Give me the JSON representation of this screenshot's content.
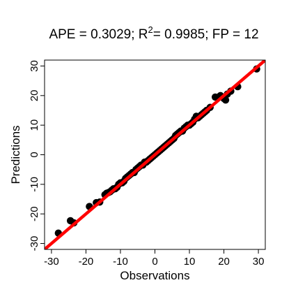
{
  "chart_data": {
    "type": "scatter",
    "title": {
      "prefix": "APE = 0.3029; R",
      "superscript": "2",
      "suffix": "= 0.9985; FP = 12"
    },
    "xlabel": "Observations",
    "ylabel": "Predictions",
    "xlim": [
      -32,
      32
    ],
    "ylim": [
      -32,
      32
    ],
    "xticks": [
      -30,
      -20,
      -10,
      0,
      10,
      20,
      30
    ],
    "yticks": [
      -30,
      -20,
      -10,
      0,
      10,
      20,
      30
    ],
    "grid": false,
    "legend": "none",
    "reference_line": {
      "slope": 1,
      "intercept": 0,
      "color": "#ff0000"
    },
    "point_color": "#000000",
    "points": [
      {
        "x": -28,
        "y": -26.5
      },
      {
        "x": -24.5,
        "y": -22.3
      },
      {
        "x": -23.5,
        "y": -23
      },
      {
        "x": -19,
        "y": -17.5
      },
      {
        "x": -17,
        "y": -16.2
      },
      {
        "x": -16,
        "y": -16
      },
      {
        "x": -14.5,
        "y": -13.5
      },
      {
        "x": -14,
        "y": -13
      },
      {
        "x": -13.5,
        "y": -12.8
      },
      {
        "x": -13,
        "y": -12.5
      },
      {
        "x": -12.5,
        "y": -12
      },
      {
        "x": -12,
        "y": -11.5
      },
      {
        "x": -11.5,
        "y": -11.5
      },
      {
        "x": -11,
        "y": -11
      },
      {
        "x": -10.5,
        "y": -10
      },
      {
        "x": -10,
        "y": -9.5
      },
      {
        "x": -9.5,
        "y": -9.5
      },
      {
        "x": -9,
        "y": -9
      },
      {
        "x": -8.5,
        "y": -8
      },
      {
        "x": -8,
        "y": -7.5
      },
      {
        "x": -7.5,
        "y": -7
      },
      {
        "x": -7,
        "y": -6.5
      },
      {
        "x": -6.5,
        "y": -6
      },
      {
        "x": -6,
        "y": -6
      },
      {
        "x": -5.5,
        "y": -5
      },
      {
        "x": -5,
        "y": -4.5
      },
      {
        "x": -4.5,
        "y": -4
      },
      {
        "x": -4,
        "y": -3.5
      },
      {
        "x": -3.5,
        "y": -3.5
      },
      {
        "x": -3,
        "y": -2.5
      },
      {
        "x": -2.5,
        "y": -2.5
      },
      {
        "x": -2,
        "y": -2
      },
      {
        "x": -1.5,
        "y": -1.5
      },
      {
        "x": -1,
        "y": -1
      },
      {
        "x": -0.5,
        "y": -0.5
      },
      {
        "x": 0,
        "y": 0
      },
      {
        "x": 0.5,
        "y": 0.5
      },
      {
        "x": 1,
        "y": 1
      },
      {
        "x": 1.5,
        "y": 1.5
      },
      {
        "x": 2,
        "y": 2
      },
      {
        "x": 2.5,
        "y": 2.5
      },
      {
        "x": 3,
        "y": 3
      },
      {
        "x": 3.5,
        "y": 3.5
      },
      {
        "x": 4,
        "y": 4
      },
      {
        "x": 4.5,
        "y": 4.5
      },
      {
        "x": 5,
        "y": 5
      },
      {
        "x": 5.5,
        "y": 5.5
      },
      {
        "x": 6,
        "y": 6.5
      },
      {
        "x": 6.5,
        "y": 7
      },
      {
        "x": 7,
        "y": 7.5
      },
      {
        "x": 7.5,
        "y": 8
      },
      {
        "x": 8,
        "y": 8
      },
      {
        "x": 8.5,
        "y": 9
      },
      {
        "x": 9,
        "y": 9.5
      },
      {
        "x": 9.5,
        "y": 10
      },
      {
        "x": 10,
        "y": 10
      },
      {
        "x": 10.5,
        "y": 10.5
      },
      {
        "x": 11,
        "y": 11
      },
      {
        "x": 11.5,
        "y": 12
      },
      {
        "x": 12,
        "y": 13
      },
      {
        "x": 12.5,
        "y": 12.5
      },
      {
        "x": 13,
        "y": 13
      },
      {
        "x": 13.5,
        "y": 13.5
      },
      {
        "x": 14,
        "y": 14
      },
      {
        "x": 14.5,
        "y": 14.5
      },
      {
        "x": 15,
        "y": 15
      },
      {
        "x": 16,
        "y": 16
      },
      {
        "x": 17.5,
        "y": 19.5
      },
      {
        "x": 18.5,
        "y": 19.5
      },
      {
        "x": 19,
        "y": 20
      },
      {
        "x": 20,
        "y": 19
      },
      {
        "x": 20.5,
        "y": 18.5
      },
      {
        "x": 21,
        "y": 20.5
      },
      {
        "x": 22,
        "y": 21.5
      },
      {
        "x": 24,
        "y": 23
      },
      {
        "x": 29.5,
        "y": 29
      }
    ]
  }
}
